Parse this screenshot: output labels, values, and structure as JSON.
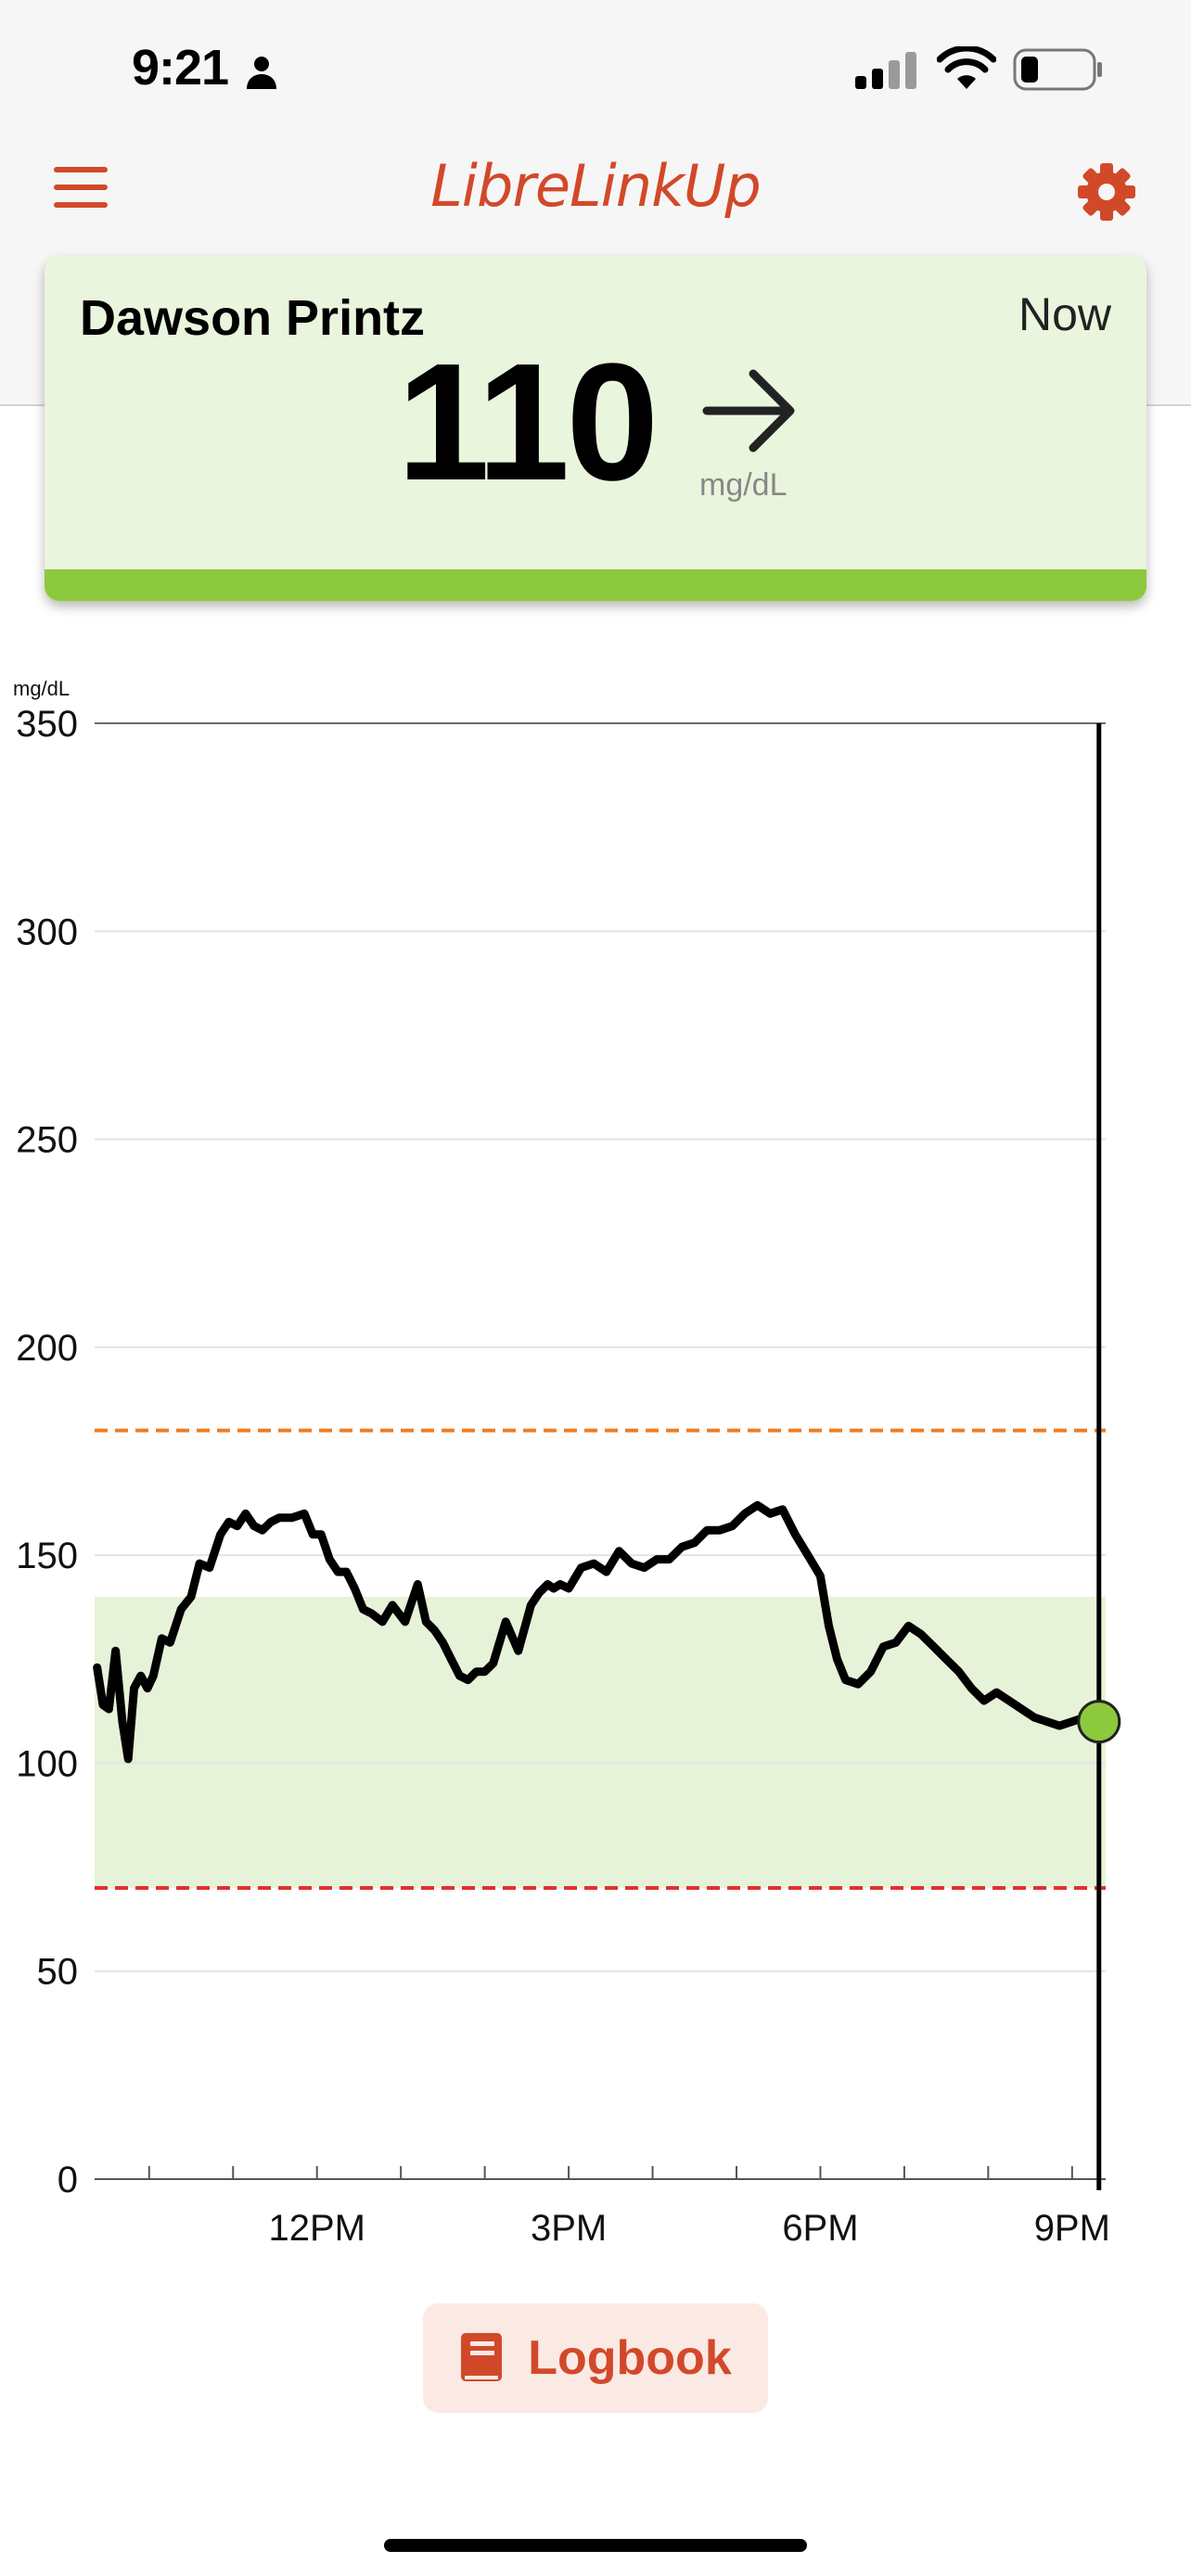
{
  "status_bar": {
    "time": "9:21"
  },
  "nav": {
    "title": "LibreLinkUp"
  },
  "card": {
    "name": "Dawson Printz",
    "time": "Now",
    "value": "110",
    "unit": "mg/dL",
    "trend": "steady"
  },
  "colors": {
    "accent": "#d2492a",
    "card_bg": "#eaf5dd",
    "in_range": "#8dc93c",
    "high_limit": "#ef7d22",
    "low_limit": "#e0302e",
    "target_band": "#e6f3d8"
  },
  "chart_data": {
    "type": "line",
    "ylabel": "mg/dL",
    "ylim": [
      0,
      350
    ],
    "yticks": [
      "0",
      "50",
      "100",
      "150",
      "200",
      "250",
      "300",
      "350"
    ],
    "xtick_labels": [
      "12PM",
      "3PM",
      "6PM",
      "9PM"
    ],
    "xtick_hours": [
      12,
      15,
      18,
      21
    ],
    "xlim_hours": [
      9.35,
      21.4
    ],
    "minor_tick_hours": [
      10,
      11,
      12,
      13,
      14,
      15,
      16,
      17,
      18,
      19,
      20,
      21
    ],
    "target_range": [
      70,
      140
    ],
    "high_limit": 180,
    "low_limit": 70,
    "current_marker": {
      "x": 21.32,
      "y": 110
    },
    "series": [
      {
        "x": [
          9.38,
          9.45,
          9.52,
          9.6,
          9.68,
          9.75,
          9.82,
          9.9,
          9.98,
          10.05,
          10.15,
          10.25,
          10.38,
          10.5,
          10.6,
          10.72,
          10.85,
          10.95,
          11.05,
          11.15,
          11.25,
          11.35,
          11.45,
          11.55,
          11.7,
          11.85,
          11.95,
          12.05,
          12.15,
          12.25,
          12.35,
          12.45,
          12.55,
          12.65,
          12.78,
          12.9,
          13.05,
          13.2,
          13.3,
          13.4,
          13.5,
          13.6,
          13.7,
          13.8,
          13.9,
          14.0,
          14.1,
          14.25,
          14.4,
          14.55,
          14.65,
          14.75,
          14.82,
          14.9,
          15.0,
          15.15,
          15.3,
          15.45,
          15.6,
          15.75,
          15.9,
          16.05,
          16.2,
          16.35,
          16.5,
          16.65,
          16.8,
          16.95,
          17.1,
          17.25,
          17.4,
          17.55,
          17.7,
          17.85,
          18.0,
          18.1,
          18.2,
          18.3,
          18.45,
          18.6,
          18.75,
          18.9,
          19.05,
          19.2,
          19.35,
          19.5,
          19.65,
          19.8,
          19.95,
          20.1,
          20.25,
          20.4,
          20.55,
          20.7,
          20.85,
          21.0,
          21.15,
          21.32
        ],
        "y": [
          123,
          114,
          113,
          127,
          110,
          101,
          118,
          121,
          118,
          121,
          130,
          129,
          137,
          140,
          148,
          147,
          155,
          158,
          157,
          160,
          157,
          156,
          158,
          159,
          159,
          160,
          155,
          155,
          149,
          146,
          146,
          142,
          137,
          136,
          134,
          138,
          134,
          143,
          134,
          132,
          129,
          125,
          121,
          120,
          122,
          122,
          124,
          134,
          127,
          138,
          141,
          143,
          142,
          143,
          142,
          147,
          148,
          146,
          151,
          148,
          147,
          149,
          149,
          152,
          153,
          156,
          156,
          157,
          160,
          162,
          160,
          161,
          155,
          150,
          145,
          133,
          125,
          120,
          119,
          122,
          128,
          129,
          133,
          131,
          128,
          125,
          122,
          118,
          115,
          117,
          115,
          113,
          111,
          110,
          109,
          110,
          111,
          110
        ]
      }
    ]
  },
  "logbook": {
    "label": "Logbook"
  }
}
